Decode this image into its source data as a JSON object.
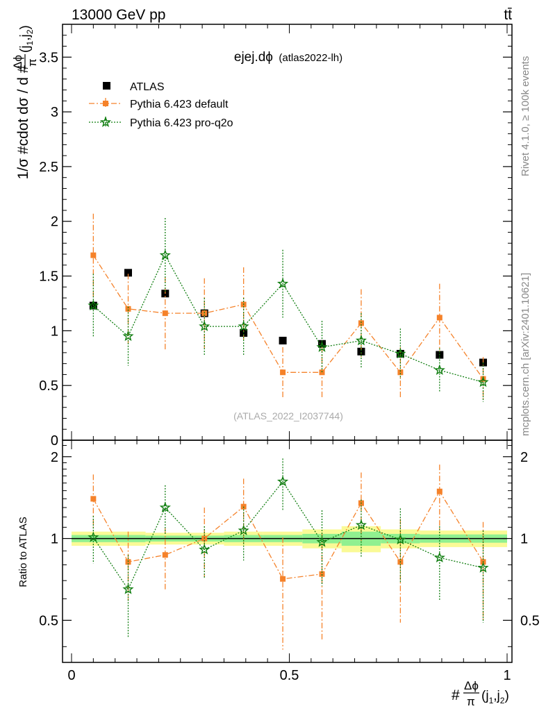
{
  "header": {
    "energy_label": "13000 GeV pp",
    "process_label": "tt̄"
  },
  "side_labels": {
    "rivet": "Rivet 4.1.0, ≥ 100k events",
    "mcplots": "mcplots.cern.ch [arXiv:2401.10621]"
  },
  "colors": {
    "atlas": "#000000",
    "pythia_default": "#f5822a",
    "pythia_pro_q2o": "#0f7d0f",
    "band_inner": "#90f090",
    "band_outer": "#fafa96"
  },
  "chart_data": [
    {
      "type": "scatter",
      "title": "ejej.dϕ",
      "subtitle": "(atlas2022-lh)",
      "watermark": "(ATLAS_2022_I2037744)",
      "ylabel": "1/σ #cdot dσ / d #Δϕ/π(j1,j2)",
      "xlim": [
        0,
        1
      ],
      "ylim": [
        0,
        3.8
      ],
      "yticks": [
        0,
        0.5,
        1,
        1.5,
        2,
        2.5,
        3,
        3.5
      ],
      "ytick_labels": [
        "0",
        "0.5",
        "1",
        "1.5",
        "2",
        "2.5",
        "3",
        "3.5"
      ],
      "x": [
        0.05,
        0.13,
        0.215,
        0.305,
        0.395,
        0.485,
        0.575,
        0.665,
        0.755,
        0.845,
        0.945
      ],
      "series": [
        {
          "name": "ATLAS",
          "marker": "square",
          "values": [
            1.23,
            1.53,
            1.34,
            1.16,
            0.98,
            0.91,
            0.88,
            0.81,
            0.79,
            0.78,
            0.71
          ],
          "errors": [
            0.03,
            0.03,
            0.03,
            0.03,
            0.03,
            0.03,
            0.03,
            0.03,
            0.03,
            0.03,
            0.03
          ]
        },
        {
          "name": "Pythia 6.423 default",
          "marker": "square-small",
          "line": "dashdot",
          "values": [
            1.69,
            1.2,
            1.16,
            1.16,
            1.24,
            0.62,
            0.62,
            1.07,
            0.62,
            1.12,
            0.56
          ],
          "errors": [
            0.38,
            0.32,
            0.33,
            0.32,
            0.34,
            0.23,
            0.23,
            0.31,
            0.23,
            0.31,
            0.2
          ]
        },
        {
          "name": "Pythia 6.423 pro-q2o",
          "marker": "star",
          "line": "dotted",
          "values": [
            1.23,
            0.95,
            1.69,
            1.04,
            1.04,
            1.43,
            0.85,
            0.91,
            0.79,
            0.64,
            0.53
          ],
          "errors": [
            0.29,
            0.27,
            0.34,
            0.26,
            0.26,
            0.31,
            0.24,
            0.25,
            0.23,
            0.2,
            0.18
          ]
        }
      ]
    },
    {
      "type": "scatter",
      "ylabel": "Ratio to ATLAS",
      "xlabel": "#Δϕ/π(j1,j2)",
      "xlim": [
        0,
        1
      ],
      "ylim": [
        0.35,
        2.3
      ],
      "yscale": "log",
      "yticks": [
        0.5,
        1,
        2
      ],
      "ytick_labels": [
        "0.5",
        "1",
        "2"
      ],
      "xticks": [
        0,
        0.5,
        1
      ],
      "xtick_labels": [
        "0",
        "0.5",
        "1"
      ],
      "reference": 1,
      "bins": [
        {
          "lo": 0.0,
          "hi": 0.17,
          "inner": 0.03,
          "outer": 0.06
        },
        {
          "lo": 0.17,
          "hi": 0.26,
          "inner": 0.025,
          "outer": 0.05
        },
        {
          "lo": 0.26,
          "hi": 0.35,
          "inner": 0.025,
          "outer": 0.05
        },
        {
          "lo": 0.35,
          "hi": 0.44,
          "inner": 0.03,
          "outer": 0.06
        },
        {
          "lo": 0.44,
          "hi": 0.53,
          "inner": 0.03,
          "outer": 0.06
        },
        {
          "lo": 0.53,
          "hi": 0.62,
          "inner": 0.04,
          "outer": 0.08
        },
        {
          "lo": 0.62,
          "hi": 0.71,
          "inner": 0.06,
          "outer": 0.11
        },
        {
          "lo": 0.71,
          "hi": 0.8,
          "inner": 0.04,
          "outer": 0.08
        },
        {
          "lo": 0.8,
          "hi": 0.89,
          "inner": 0.035,
          "outer": 0.07
        },
        {
          "lo": 0.89,
          "hi": 1.0,
          "inner": 0.035,
          "outer": 0.07
        }
      ],
      "x": [
        0.05,
        0.13,
        0.215,
        0.305,
        0.395,
        0.485,
        0.575,
        0.665,
        0.755,
        0.845,
        0.945
      ],
      "series": [
        {
          "name": "Pythia 6.423 default",
          "marker": "square-small",
          "line": "dashdot",
          "values": [
            1.4,
            0.82,
            0.87,
            1.0,
            1.31,
            0.71,
            0.74,
            1.35,
            0.82,
            1.49,
            0.82
          ],
          "err_lo": [
            0.31,
            0.23,
            0.22,
            0.28,
            0.36,
            0.32,
            0.32,
            0.37,
            0.33,
            0.42,
            0.32
          ],
          "err_hi": [
            0.32,
            0.24,
            0.22,
            0.3,
            0.35,
            0.3,
            0.3,
            0.4,
            0.36,
            0.38,
            0.33
          ]
        },
        {
          "name": "Pythia 6.423 pro-q2o",
          "marker": "star",
          "line": "dotted",
          "values": [
            1.01,
            0.65,
            1.3,
            0.91,
            1.07,
            1.62,
            0.97,
            1.12,
            0.99,
            0.85,
            0.78
          ],
          "err_lo": [
            0.2,
            0.22,
            0.27,
            0.2,
            0.24,
            0.35,
            0.3,
            0.27,
            0.3,
            0.26,
            0.29
          ],
          "err_hi": [
            0.2,
            0.22,
            0.27,
            0.2,
            0.24,
            0.35,
            0.3,
            0.27,
            0.3,
            0.26,
            0.29
          ]
        }
      ]
    }
  ]
}
